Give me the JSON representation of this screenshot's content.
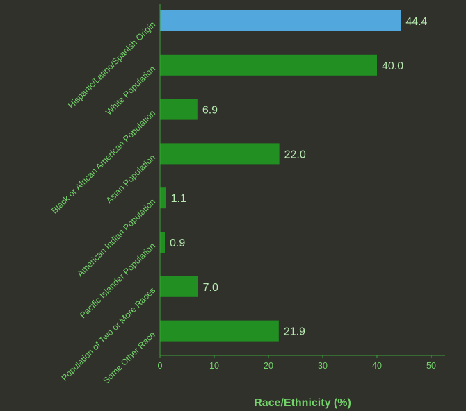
{
  "chart_data": {
    "type": "bar",
    "orientation": "horizontal",
    "categories": [
      "Hispanic/Latino/Spanish Origin",
      "White Population",
      "Black or African American Population",
      "Asian Population",
      "American Indian Population",
      "Pacific Islander Population",
      "Population of Two or More Races",
      "Some Other Race"
    ],
    "values": [
      44.4,
      40.0,
      6.9,
      22.0,
      1.1,
      0.9,
      7.0,
      21.9
    ],
    "value_labels": [
      "44.4",
      "40.0",
      "6.9",
      "22.0",
      "1.1",
      "0.9",
      "7.0",
      "21.9"
    ],
    "highlighted_index": 0,
    "title": "",
    "xlabel": "Race/Ethnicity (%)",
    "ylabel": "",
    "xlim": [
      0,
      50
    ],
    "xticks": [
      0,
      10,
      20,
      30,
      40,
      50
    ],
    "xtick_labels": [
      "0",
      "10",
      "20",
      "30",
      "40",
      "50"
    ],
    "grid": false,
    "legend": "none"
  },
  "colors": {
    "background": "#2f312a",
    "bar": "#218f22",
    "bar_highlight": "#52a7dc",
    "axis": "#3fa33a",
    "label_text": "#74d36b",
    "value_text": "#b7e9b1"
  }
}
